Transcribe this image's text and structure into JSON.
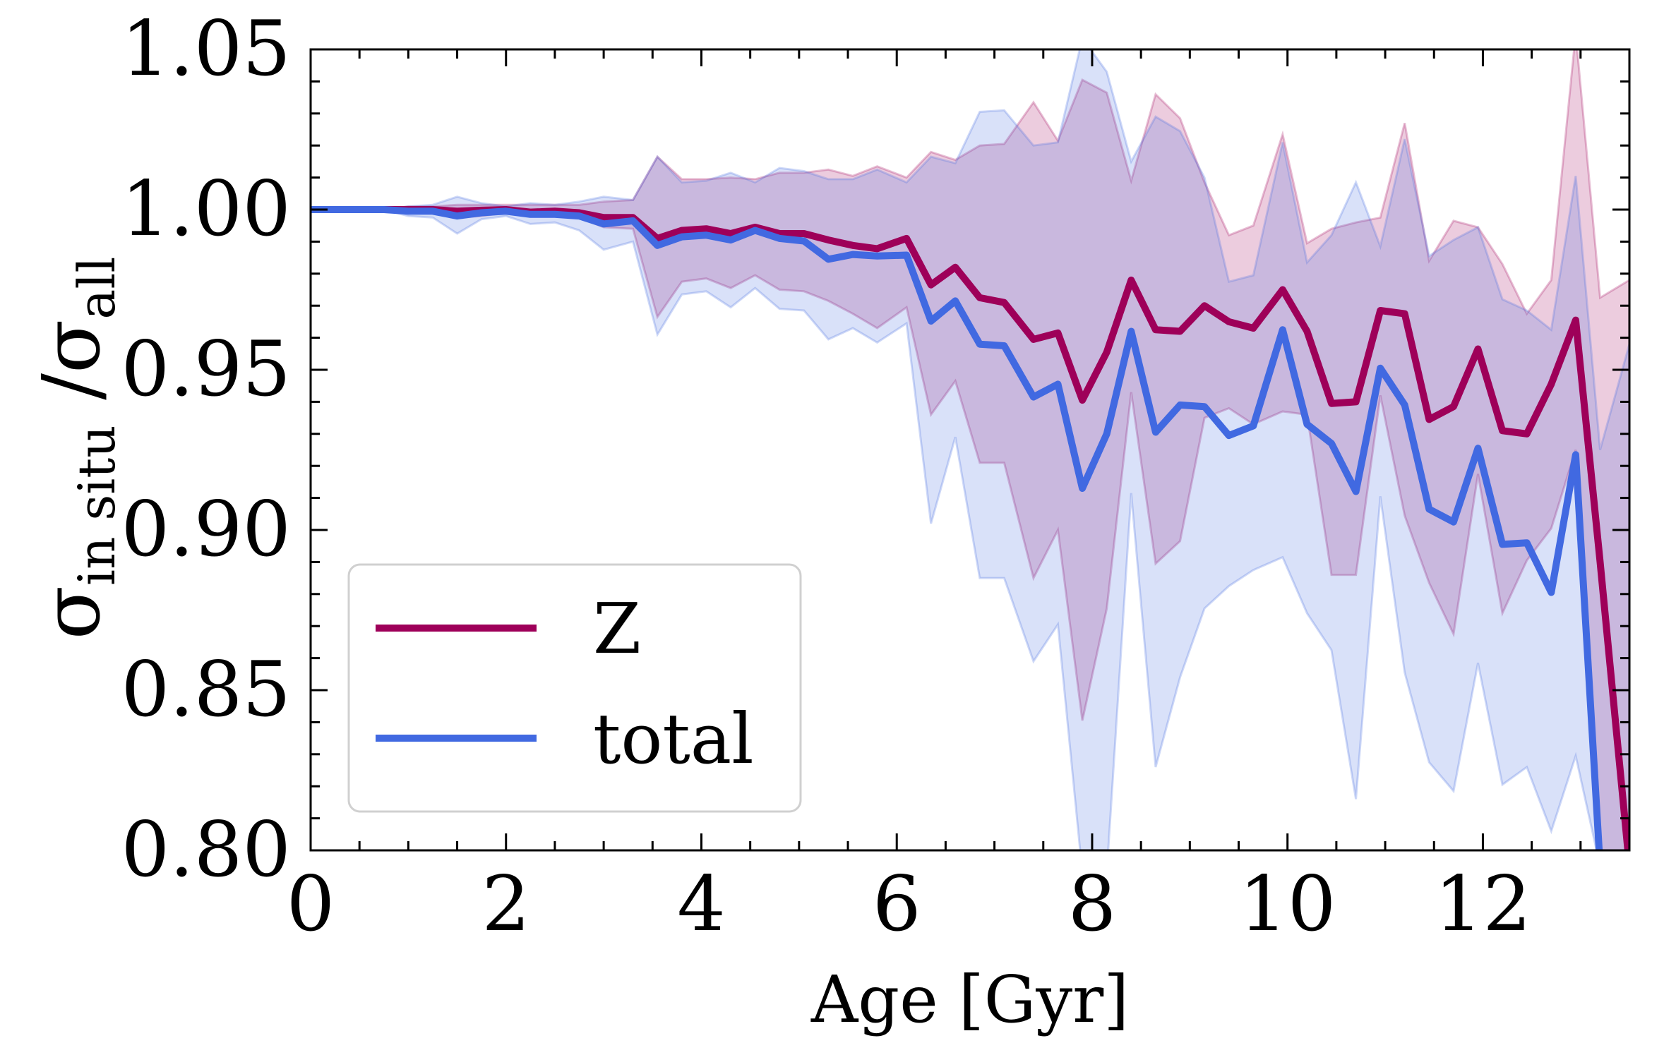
{
  "chart_data": {
    "type": "line",
    "title": "",
    "xlabel": "Age [Gyr]",
    "ylabel": {
      "base": "σ",
      "sub1": "in situ",
      "sep": " /",
      "base2": "σ",
      "sub2": "all"
    },
    "xlim": [
      0,
      13.5
    ],
    "ylim": [
      0.8,
      1.05
    ],
    "xticks": [
      0,
      2,
      4,
      6,
      8,
      10,
      12
    ],
    "xtick_labels": [
      "0",
      "2",
      "4",
      "6",
      "8",
      "10",
      "12"
    ],
    "yticks": [
      0.8,
      0.85,
      0.9,
      0.95,
      1.0,
      1.05
    ],
    "ytick_labels": [
      "0.80",
      "0.85",
      "0.90",
      "0.95",
      "1.00",
      "1.05"
    ],
    "grid": false,
    "legend_position": "lower-left",
    "x": [
      0.0,
      0.25,
      0.5,
      0.75,
      1.0,
      1.25,
      1.5,
      1.75,
      2.0,
      2.25,
      2.5,
      2.75,
      3.0,
      3.3,
      3.55,
      3.8,
      4.05,
      4.3,
      4.55,
      4.8,
      5.05,
      5.3,
      5.55,
      5.8,
      6.1,
      6.35,
      6.6,
      6.85,
      7.1,
      7.4,
      7.65,
      7.9,
      8.15,
      8.4,
      8.65,
      8.9,
      9.15,
      9.4,
      9.65,
      9.95,
      10.2,
      10.45,
      10.7,
      10.95,
      11.2,
      11.45,
      11.7,
      11.95,
      12.2,
      12.45,
      12.7,
      12.95,
      13.2,
      13.5
    ],
    "series": [
      {
        "name": "Z",
        "color": "#9e0059",
        "values": [
          1.0,
          1.0,
          1.0,
          1.0,
          1.0,
          1.0,
          0.9995,
          0.9998,
          1.0,
          0.9992,
          0.9995,
          0.999,
          0.9975,
          0.9975,
          0.991,
          0.9935,
          0.994,
          0.9925,
          0.9945,
          0.9925,
          0.9925,
          0.9905,
          0.9888,
          0.9878,
          0.991,
          0.9765,
          0.982,
          0.9725,
          0.971,
          0.9595,
          0.9615,
          0.9405,
          0.9555,
          0.978,
          0.9625,
          0.962,
          0.97,
          0.965,
          0.963,
          0.975,
          0.962,
          0.9395,
          0.94,
          0.9685,
          0.9675,
          0.9345,
          0.9385,
          0.9565,
          0.931,
          0.93,
          0.9455,
          0.9655,
          0.89,
          0.795
        ],
        "upper": [
          1.0,
          1.0,
          1.0,
          1.0,
          1.001,
          1.001,
          1.0015,
          1.0015,
          1.0015,
          1.0015,
          1.0015,
          1.0015,
          1.0025,
          1.003,
          1.0165,
          1.0095,
          1.0095,
          1.01,
          1.0095,
          1.0115,
          1.0115,
          1.0125,
          1.0105,
          1.0135,
          1.01,
          1.018,
          1.0155,
          1.02,
          1.0205,
          1.0335,
          1.0215,
          1.0405,
          1.0365,
          1.009,
          1.036,
          1.0285,
          1.0085,
          0.992,
          0.995,
          1.0235,
          0.9895,
          0.994,
          0.996,
          0.9975,
          1.027,
          0.984,
          0.9965,
          0.9945,
          0.983,
          0.9675,
          0.978,
          1.055,
          0.9725,
          0.978
        ],
        "lower": [
          1.0,
          1.0,
          1.0,
          1.0,
          0.9995,
          0.999,
          0.9975,
          0.998,
          0.999,
          0.998,
          0.998,
          0.9975,
          0.9945,
          0.994,
          0.9665,
          0.9775,
          0.9785,
          0.9755,
          0.9795,
          0.975,
          0.9745,
          0.9715,
          0.9675,
          0.963,
          0.9695,
          0.936,
          0.9465,
          0.921,
          0.921,
          0.885,
          0.9,
          0.8405,
          0.8755,
          0.943,
          0.8895,
          0.8965,
          0.935,
          0.938,
          0.933,
          0.937,
          0.936,
          0.886,
          0.886,
          0.942,
          0.9045,
          0.8835,
          0.8675,
          0.9175,
          0.874,
          0.8905,
          0.9005,
          0.925,
          0.795,
          0.795
        ]
      },
      {
        "name": "total",
        "color": "#4169e1",
        "values": [
          1.0,
          1.0,
          1.0,
          1.0,
          0.9995,
          0.9995,
          0.998,
          0.999,
          0.9995,
          0.9985,
          0.9985,
          0.998,
          0.9955,
          0.9965,
          0.9888,
          0.9915,
          0.992,
          0.9905,
          0.9935,
          0.991,
          0.9902,
          0.9845,
          0.986,
          0.9855,
          0.9858,
          0.9652,
          0.9715,
          0.958,
          0.9575,
          0.9415,
          0.9455,
          0.913,
          0.93,
          0.962,
          0.9305,
          0.939,
          0.9385,
          0.9295,
          0.9325,
          0.9625,
          0.933,
          0.927,
          0.912,
          0.9505,
          0.939,
          0.9065,
          0.9025,
          0.9255,
          0.8955,
          0.896,
          0.8805,
          0.9235,
          0.795,
          0.795
        ],
        "upper": [
          1.0,
          1.0,
          1.0,
          1.0,
          1.001,
          1.0015,
          1.004,
          1.002,
          1.001,
          1.002,
          1.0015,
          1.0025,
          1.004,
          1.003,
          1.0165,
          1.0085,
          1.009,
          1.0115,
          1.0085,
          1.013,
          1.012,
          1.0095,
          1.0095,
          1.0125,
          1.0085,
          1.0165,
          1.0145,
          1.0305,
          1.031,
          1.02,
          1.021,
          1.0535,
          1.043,
          1.015,
          1.029,
          1.0245,
          1.01,
          0.9775,
          0.9795,
          1.021,
          0.9835,
          0.992,
          1.0085,
          0.9885,
          1.022,
          0.9855,
          0.9905,
          0.9945,
          0.972,
          0.9685,
          0.9625,
          1.0105,
          0.925,
          0.958
        ],
        "lower": [
          1.0,
          1.0,
          1.0,
          1.0,
          0.998,
          0.9975,
          0.9925,
          0.997,
          0.998,
          0.9955,
          0.996,
          0.9935,
          0.9875,
          0.99,
          0.961,
          0.9735,
          0.9745,
          0.9695,
          0.9755,
          0.969,
          0.9685,
          0.9595,
          0.963,
          0.9585,
          0.9645,
          0.902,
          0.929,
          0.885,
          0.885,
          0.859,
          0.8705,
          0.793,
          0.793,
          0.9115,
          0.826,
          0.854,
          0.8755,
          0.8825,
          0.8875,
          0.8915,
          0.874,
          0.8625,
          0.816,
          0.9105,
          0.8555,
          0.8275,
          0.8185,
          0.8585,
          0.8205,
          0.826,
          0.806,
          0.8295,
          0.795,
          0.795
        ]
      }
    ]
  }
}
